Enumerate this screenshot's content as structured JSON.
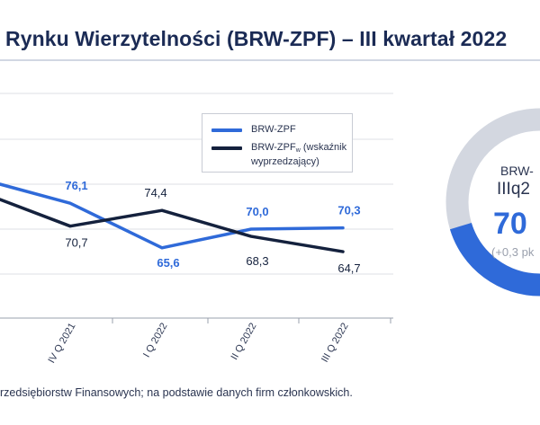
{
  "title": "Rynku Wierzytelności (BRW-ZPF) – III kwartał 2022",
  "chart_data": {
    "type": "line",
    "categories": [
      "IV Q 2021",
      "I Q 2022",
      "II Q 2022",
      "III Q 2022"
    ],
    "series": [
      {
        "name": "BRW-ZPF",
        "values": [
          76.1,
          65.6,
          70.0,
          70.3
        ],
        "labels": [
          "76,1",
          "65,6",
          "70,0",
          "70,3"
        ],
        "color": "#2f6ad9"
      },
      {
        "name_main": "BRW-ZPF",
        "name_sub": "w",
        "name_rest": " (wskaźnik wyprzedzający)",
        "values": [
          70.7,
          74.4,
          68.3,
          64.7
        ],
        "labels": [
          "70,7",
          "74,4",
          "68,3",
          "64,7"
        ],
        "color": "#14213d"
      }
    ],
    "grid": true,
    "legend_position": "top-right"
  },
  "donut": {
    "title": "BRW-",
    "subtitle": "IIIq2",
    "value": "70",
    "change": "(+0,3 pk",
    "fill_percent": 70.3,
    "fill_color": "#2f6ad9",
    "track_color": "#d3d7e0"
  },
  "source": "rzedsiębiorstw Finansowych; na podstawie danych firm członkowskich."
}
